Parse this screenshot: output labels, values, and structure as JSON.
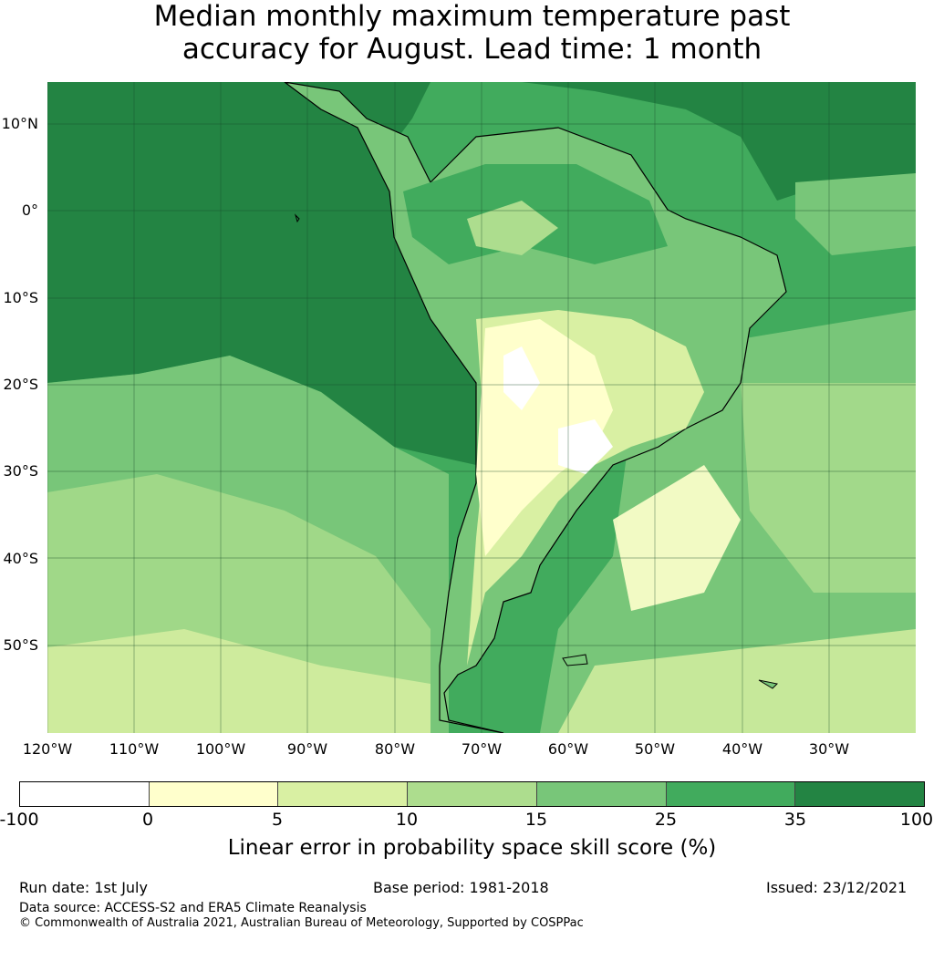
{
  "title_line1": "Median monthly maximum temperature past",
  "title_line2": "accuracy for August. Lead time: 1 month",
  "lat_labels": [
    "10°N",
    "0°",
    "10°S",
    "20°S",
    "30°S",
    "40°S",
    "50°S"
  ],
  "lon_labels": [
    "120°W",
    "110°W",
    "100°W",
    "90°W",
    "80°W",
    "70°W",
    "60°W",
    "50°W",
    "40°W",
    "30°W"
  ],
  "colorbar": {
    "ticks": [
      "-100",
      "0",
      "5",
      "10",
      "15",
      "25",
      "35",
      "100"
    ],
    "colors": [
      "#ffffff",
      "#ffffcc",
      "#d9f0a3",
      "#addd8e",
      "#78c679",
      "#41ab5d",
      "#238443"
    ],
    "label": "Linear error in probability space skill score (%)"
  },
  "footer": {
    "run_date": "Run date: 1st July",
    "base_period": "Base period: 1981-2018",
    "issued": "Issued: 23/12/2021",
    "data_source": "Data source: ACCESS-S2 and ERA5 Climate Reanalysis",
    "copyright": "© Commonwealth of Australia 2021, Australian Bureau of Meteorology, Supported by COSPPac"
  }
}
